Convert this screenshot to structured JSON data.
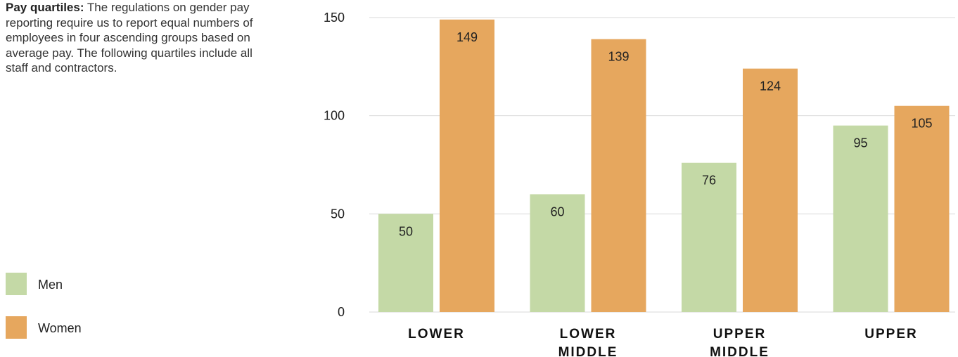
{
  "intro": {
    "lead": "Pay quartiles:",
    "text": " The regulations on gender pay reporting require us to report equal numbers of employees in four ascending groups based on average pay. The following quartiles include all staff and contractors."
  },
  "legend": [
    {
      "label": "Men",
      "color": "#c4d9a6"
    },
    {
      "label": "Women",
      "color": "#e6a75e"
    }
  ],
  "chart_data": {
    "type": "bar",
    "categories": [
      [
        "LOWER"
      ],
      [
        "LOWER",
        "MIDDLE"
      ],
      [
        "UPPER",
        "MIDDLE"
      ],
      [
        "UPPER"
      ]
    ],
    "series": [
      {
        "name": "Men",
        "color": "#c4d9a6",
        "values": [
          50,
          60,
          76,
          95
        ]
      },
      {
        "name": "Women",
        "color": "#e6a75e",
        "values": [
          149,
          139,
          124,
          105
        ]
      }
    ],
    "ylim": [
      0,
      150
    ],
    "yticks": [
      0,
      50,
      100,
      150
    ],
    "grid": true,
    "gridColor": "#d9d9d9",
    "title": "",
    "xlabel": "",
    "ylabel": "",
    "legend_position": "bottom-left"
  }
}
